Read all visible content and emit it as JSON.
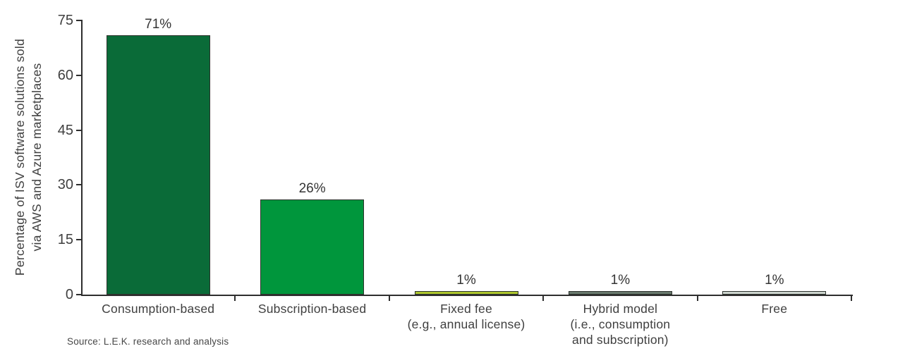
{
  "chart_data": {
    "type": "bar",
    "title": "",
    "categories": [
      "Consumption-based",
      "Subscription-based",
      "Fixed fee (e.g., annual license)",
      "Hybrid model (i.e., consumption and subscription)",
      "Free"
    ],
    "category_label_lines": [
      [
        "Consumption-based"
      ],
      [
        "Subscription-based"
      ],
      [
        "Fixed fee",
        "(e.g., annual license)"
      ],
      [
        "Hybrid model",
        "(i.e., consumption",
        "and subscription)"
      ],
      [
        "Free"
      ]
    ],
    "values": [
      71,
      26,
      1,
      1,
      1
    ],
    "value_labels": [
      "71%",
      "26%",
      "1%",
      "1%",
      "1%"
    ],
    "bar_colors": [
      "#0a6b38",
      "#00963c",
      "#aec72d",
      "#697a6e",
      "#ccd4ce"
    ],
    "bar_border_color": "#2d332d",
    "ylabel": "Percentage of ISV software solutions sold via AWS and Azure marketplaces",
    "ylabel_lines": [
      "Percentage of ISV software solutions sold",
      "via AWS and Azure marketplaces"
    ],
    "yticks": [
      0,
      15,
      30,
      45,
      60,
      75
    ],
    "ylim": [
      0,
      75
    ],
    "grid": false,
    "legend": false,
    "source": "Source: L.E.K. research and analysis",
    "text_color": "#3f3f3f",
    "axis_color": "#2e2e2e"
  }
}
